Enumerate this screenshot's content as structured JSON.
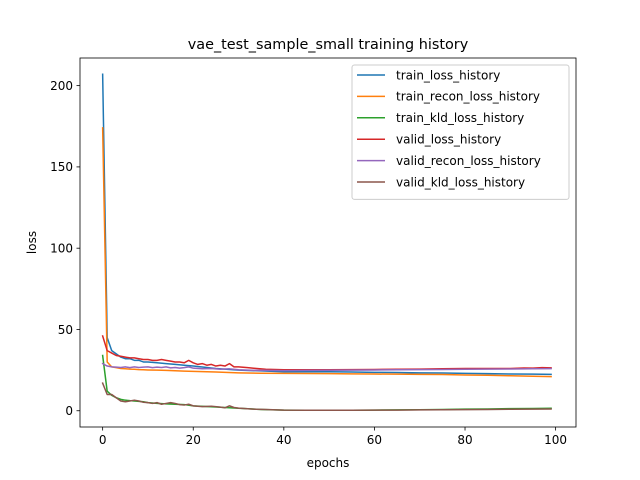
{
  "chart_data": {
    "type": "line",
    "title": "vae_test_sample_small training history",
    "xlabel": "epochs",
    "ylabel": "loss",
    "xlim": [
      -5,
      104.5
    ],
    "ylim": [
      -10,
      217
    ],
    "xticks": [
      0,
      20,
      40,
      60,
      80,
      100
    ],
    "yticks": [
      0,
      50,
      100,
      150,
      200
    ],
    "grid": false,
    "legend_position": "top-right",
    "series": [
      {
        "name": "train_loss_history",
        "color": "#1f77b4",
        "x": [
          0,
          1,
          2,
          3,
          4,
          5,
          6,
          7,
          8,
          9,
          10,
          12,
          14,
          16,
          18,
          20,
          25,
          30,
          35,
          40,
          45,
          50,
          55,
          60,
          65,
          70,
          75,
          80,
          85,
          90,
          95,
          99
        ],
        "y": [
          207,
          45,
          37,
          35,
          33,
          32,
          32,
          31,
          31,
          30,
          30,
          29.5,
          29,
          28.5,
          28,
          27.5,
          26,
          25,
          24.5,
          24,
          24,
          24,
          23.8,
          23.6,
          23.5,
          23.3,
          23.2,
          23,
          22.8,
          22.6,
          22.5,
          22.4
        ]
      },
      {
        "name": "train_recon_loss_history",
        "color": "#ff7f0e",
        "x": [
          0,
          1,
          2,
          3,
          4,
          5,
          6,
          7,
          8,
          9,
          10,
          12,
          14,
          16,
          18,
          20,
          25,
          30,
          35,
          40,
          45,
          50,
          55,
          60,
          65,
          70,
          75,
          80,
          85,
          90,
          95,
          99
        ],
        "y": [
          174,
          30,
          27,
          26.5,
          26,
          25.8,
          25.6,
          25.5,
          25.3,
          25.2,
          25.1,
          25,
          24.8,
          24.6,
          24.4,
          24.2,
          23.8,
          23.3,
          23.1,
          23,
          22.9,
          22.8,
          22.7,
          22.6,
          22.5,
          22.4,
          22.3,
          22,
          21.8,
          21.5,
          21.2,
          21
        ]
      },
      {
        "name": "train_kld_loss_history",
        "color": "#2ca02c",
        "x": [
          0,
          1,
          2,
          3,
          4,
          5,
          6,
          7,
          8,
          9,
          10,
          12,
          14,
          16,
          18,
          20,
          25,
          30,
          35,
          40,
          45,
          50,
          55,
          60,
          65,
          70,
          75,
          80,
          85,
          90,
          95,
          99
        ],
        "y": [
          34,
          12,
          9.5,
          8,
          7,
          6.5,
          6.2,
          6,
          5.8,
          5.5,
          5,
          4.5,
          4.2,
          4,
          3.8,
          3,
          2.3,
          1.5,
          0.8,
          0.4,
          0.3,
          0.3,
          0.3,
          0.4,
          0.5,
          0.6,
          0.8,
          1,
          1.1,
          1.3,
          1.4,
          1.5
        ]
      },
      {
        "name": "valid_loss_history",
        "color": "#d62728",
        "x": [
          0,
          1,
          2,
          3,
          4,
          5,
          6,
          7,
          8,
          9,
          10,
          11,
          12,
          13,
          14,
          15,
          16,
          17,
          18,
          19,
          20,
          21,
          22,
          23,
          24,
          25,
          26,
          27,
          28,
          29,
          30,
          32,
          34,
          36,
          40,
          45,
          50,
          55,
          60,
          65,
          70,
          75,
          80,
          85,
          90,
          93,
          95,
          97,
          99
        ],
        "y": [
          46,
          37,
          35.5,
          34,
          33.5,
          33,
          32.5,
          32.5,
          32,
          31.5,
          31.5,
          31,
          31,
          31.5,
          31,
          30.5,
          30,
          30,
          29.5,
          31,
          29.5,
          28.5,
          29,
          28,
          28.5,
          27.5,
          28,
          27.5,
          29,
          27,
          27,
          26.5,
          26,
          25.5,
          25.2,
          25.2,
          25.2,
          25.3,
          25.4,
          25.5,
          25.6,
          25.8,
          26,
          26,
          26,
          26.3,
          26.2,
          26.5,
          26.4
        ]
      },
      {
        "name": "valid_recon_loss_history",
        "color": "#9467bd",
        "x": [
          0,
          1,
          2,
          3,
          4,
          5,
          6,
          7,
          8,
          9,
          10,
          11,
          12,
          13,
          14,
          15,
          16,
          17,
          18,
          19,
          20,
          22,
          24,
          26,
          28,
          30,
          32,
          34,
          36,
          40,
          45,
          50,
          55,
          60,
          65,
          70,
          75,
          80,
          85,
          90,
          95,
          99
        ],
        "y": [
          29,
          27.5,
          27,
          26.8,
          26.6,
          27,
          26.5,
          27,
          26.6,
          26.8,
          27,
          26.5,
          26.8,
          26.6,
          27,
          26.4,
          26.6,
          26.2,
          26.5,
          27,
          26.2,
          25.8,
          26,
          25.5,
          25.8,
          25.2,
          25,
          24.8,
          24.8,
          24.7,
          24.8,
          24.9,
          25,
          25.1,
          25.2,
          25.3,
          25.4,
          25.5,
          25.6,
          25.7,
          25.8,
          25.9
        ]
      },
      {
        "name": "valid_kld_loss_history",
        "color": "#8c564b",
        "x": [
          0,
          1,
          2,
          3,
          4,
          5,
          6,
          7,
          8,
          9,
          10,
          11,
          12,
          13,
          14,
          15,
          16,
          17,
          18,
          19,
          20,
          22,
          24,
          26,
          27,
          28,
          29,
          30,
          32,
          34,
          36,
          40,
          45,
          50,
          55,
          60,
          65,
          70,
          75,
          80,
          85,
          90,
          95,
          99
        ],
        "y": [
          17,
          10,
          10,
          8,
          6,
          5.5,
          6,
          6.5,
          6,
          5.2,
          5,
          4.5,
          5,
          4,
          4.5,
          5,
          4.5,
          3.8,
          3.5,
          4,
          3,
          2.5,
          2.8,
          2.2,
          1.8,
          3,
          2,
          1.6,
          1.2,
          0.9,
          0.8,
          0.4,
          0.3,
          0.3,
          0.3,
          0.4,
          0.4,
          0.5,
          0.6,
          0.7,
          0.8,
          0.9,
          1,
          1.1
        ]
      }
    ]
  }
}
